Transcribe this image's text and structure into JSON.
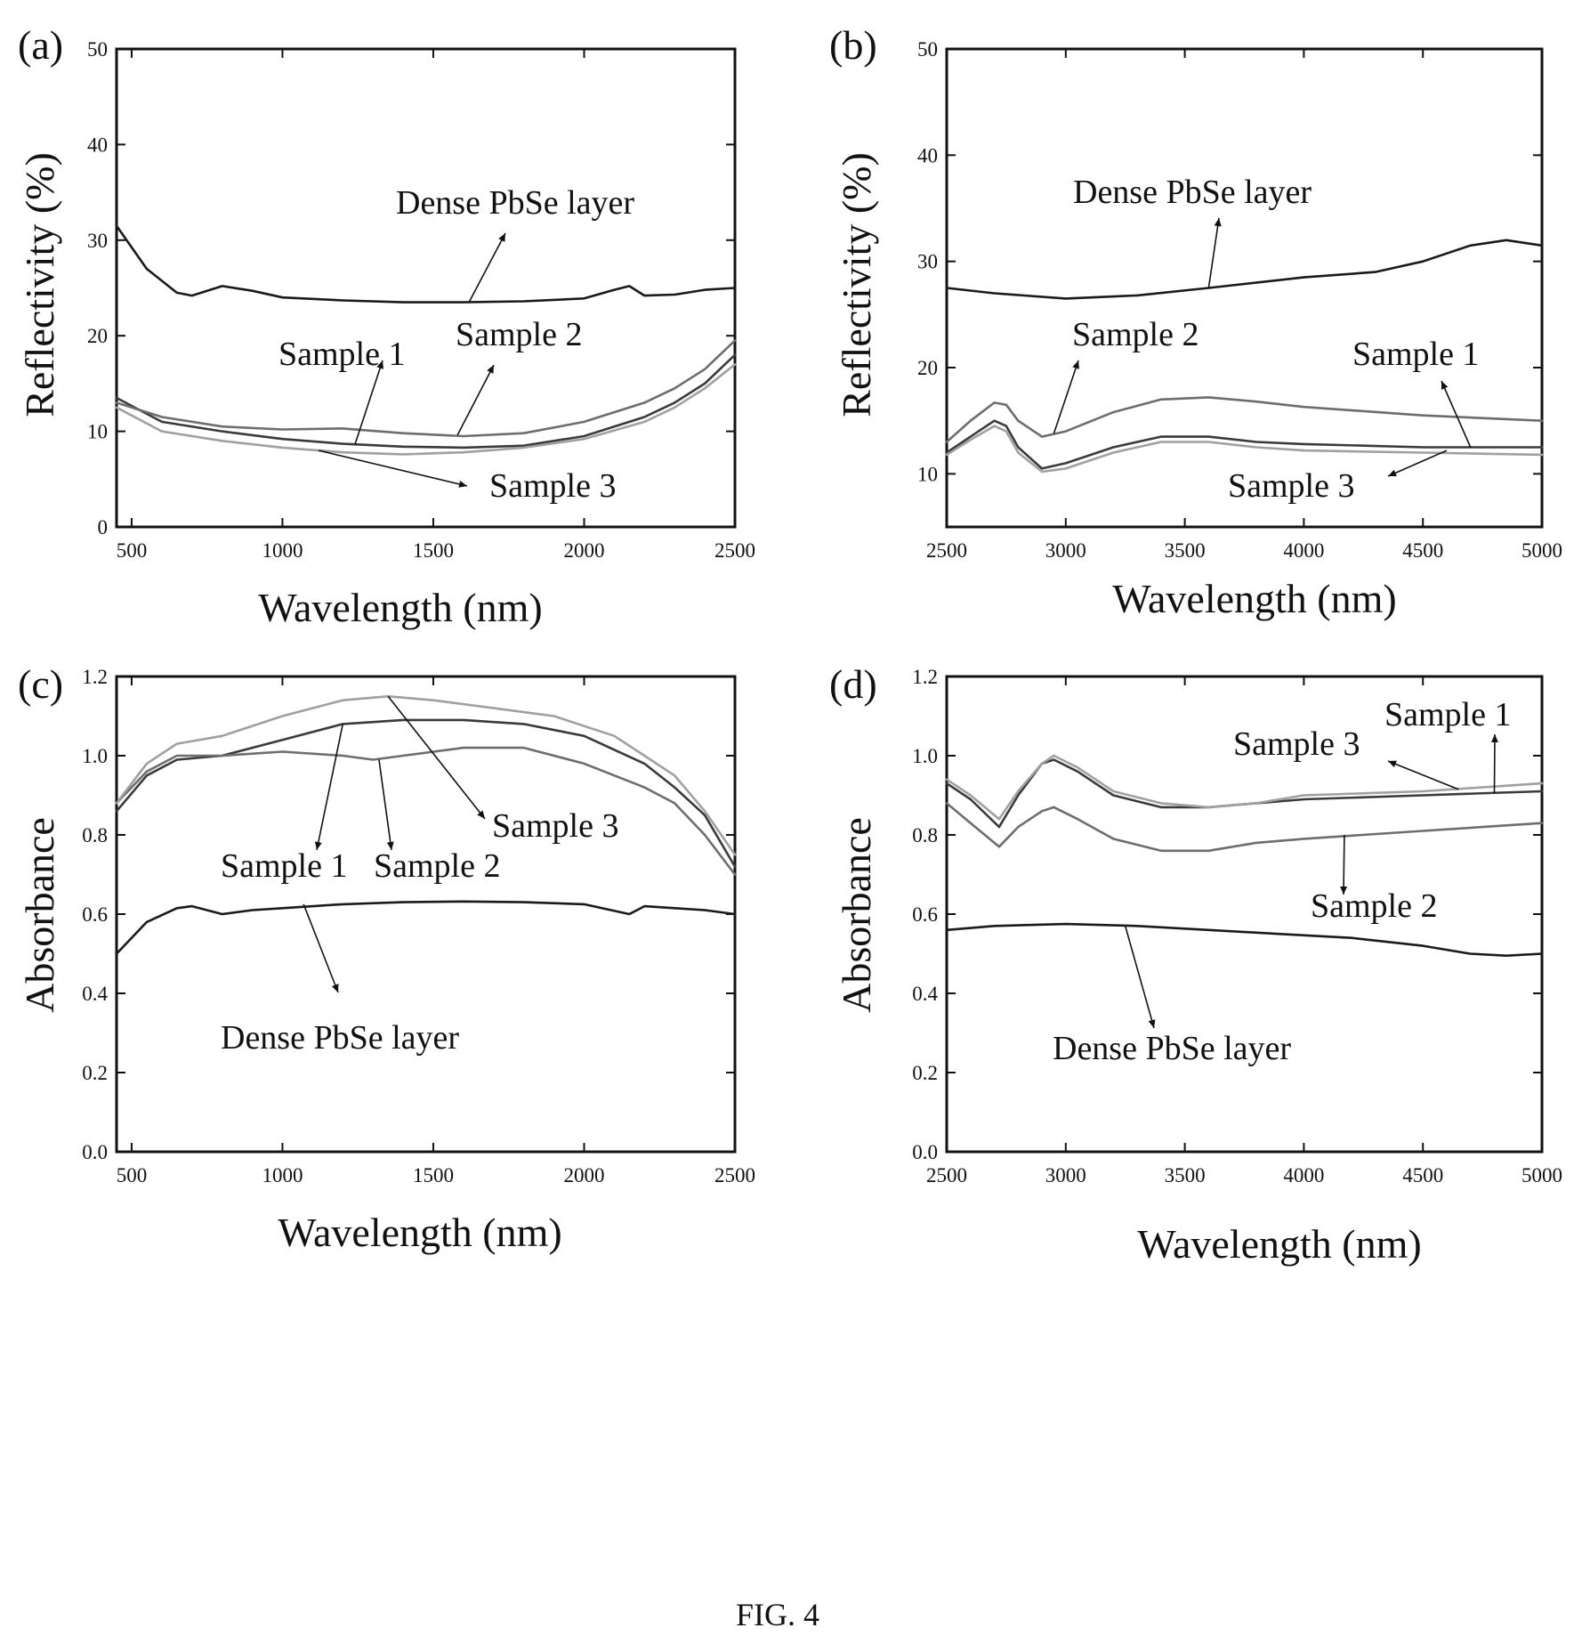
{
  "figure": {
    "caption": "FIG. 4"
  },
  "chart_data": [
    {
      "panel": "(a)",
      "type": "line",
      "xlabel": "Wavelength (nm)",
      "ylabel": "Reflectivity (%)",
      "xlim": [
        450,
        2500
      ],
      "ylim": [
        0,
        50
      ],
      "xticks": [
        500,
        1000,
        1500,
        2000,
        2500
      ],
      "yticks": [
        0,
        10,
        20,
        30,
        40,
        50
      ],
      "grid": false,
      "series": [
        {
          "name": "Dense PbSe layer",
          "color": "#1a1a1a",
          "x": [
            450,
            550,
            650,
            700,
            800,
            900,
            1000,
            1200,
            1400,
            1600,
            1800,
            2000,
            2100,
            2150,
            2200,
            2300,
            2400,
            2500
          ],
          "y": [
            31.5,
            27,
            24.5,
            24.2,
            25.2,
            24.7,
            24,
            23.7,
            23.5,
            23.5,
            23.6,
            23.9,
            24.8,
            25.2,
            24.2,
            24.3,
            24.8,
            25
          ]
        },
        {
          "name": "Sample 1",
          "color": "#3a3a3a",
          "x": [
            450,
            600,
            800,
            1000,
            1200,
            1400,
            1600,
            1800,
            2000,
            2200,
            2300,
            2400,
            2500
          ],
          "y": [
            13.5,
            11,
            10,
            9.2,
            8.7,
            8.4,
            8.3,
            8.5,
            9.5,
            11.5,
            13,
            15,
            18
          ]
        },
        {
          "name": "Sample 2",
          "color": "#6d6d6d",
          "x": [
            450,
            600,
            800,
            1000,
            1200,
            1400,
            1600,
            1800,
            2000,
            2200,
            2300,
            2400,
            2500
          ],
          "y": [
            13,
            11.5,
            10.5,
            10.2,
            10.3,
            9.8,
            9.5,
            9.8,
            11,
            13,
            14.5,
            16.5,
            19.5
          ]
        },
        {
          "name": "Sample 3",
          "color": "#a0a0a0",
          "x": [
            450,
            600,
            800,
            1000,
            1200,
            1400,
            1600,
            1800,
            2000,
            2200,
            2300,
            2400,
            2500
          ],
          "y": [
            12.5,
            10,
            9,
            8.3,
            7.8,
            7.6,
            7.8,
            8.3,
            9.2,
            11,
            12.5,
            14.5,
            17
          ]
        }
      ],
      "annotations": [
        "Dense PbSe layer",
        "Sample 1",
        "Sample 2",
        "Sample 3"
      ]
    },
    {
      "panel": "(b)",
      "type": "line",
      "xlabel": "Wavelength (nm)",
      "ylabel": "Reflectivity (%)",
      "xlim": [
        2500,
        5000
      ],
      "ylim": [
        5,
        50
      ],
      "xticks": [
        2500,
        3000,
        3500,
        4000,
        4500,
        5000
      ],
      "yticks": [
        10,
        20,
        30,
        40,
        50
      ],
      "grid": false,
      "series": [
        {
          "name": "Dense PbSe layer",
          "color": "#1a1a1a",
          "x": [
            2500,
            2700,
            3000,
            3300,
            3600,
            4000,
            4300,
            4500,
            4700,
            4850,
            5000
          ],
          "y": [
            27.5,
            27,
            26.5,
            26.8,
            27.5,
            28.5,
            29,
            30,
            31.5,
            32,
            31.5
          ]
        },
        {
          "name": "Sample 1",
          "color": "#3a3a3a",
          "x": [
            2500,
            2600,
            2700,
            2750,
            2800,
            2900,
            3000,
            3200,
            3400,
            3600,
            3800,
            4000,
            4500,
            5000
          ],
          "y": [
            12,
            13.5,
            15,
            14.5,
            12.5,
            10.5,
            11,
            12.5,
            13.5,
            13.5,
            13,
            12.8,
            12.5,
            12.5
          ]
        },
        {
          "name": "Sample 2",
          "color": "#6d6d6d",
          "x": [
            2500,
            2600,
            2700,
            2750,
            2800,
            2900,
            3000,
            3200,
            3400,
            3600,
            3800,
            4000,
            4500,
            5000
          ],
          "y": [
            13,
            15,
            16.7,
            16.5,
            15,
            13.5,
            14,
            15.8,
            17,
            17.2,
            16.8,
            16.3,
            15.5,
            15
          ]
        },
        {
          "name": "Sample 3",
          "color": "#a0a0a0",
          "x": [
            2500,
            2600,
            2700,
            2750,
            2800,
            2900,
            3000,
            3200,
            3400,
            3600,
            3800,
            4000,
            4500,
            5000
          ],
          "y": [
            11.8,
            13.2,
            14.5,
            14,
            12,
            10.2,
            10.5,
            12,
            13,
            13,
            12.5,
            12.2,
            12,
            11.8
          ]
        }
      ],
      "annotations": [
        "Dense PbSe layer",
        "Sample 2",
        "Sample 1",
        "Sample 3"
      ]
    },
    {
      "panel": "(c)",
      "type": "line",
      "xlabel": "Wavelength (nm)",
      "ylabel": "Absorbance",
      "xlim": [
        450,
        2500
      ],
      "ylim": [
        0.0,
        1.2
      ],
      "xticks": [
        500,
        1000,
        1500,
        2000,
        2500
      ],
      "yticks": [
        0.0,
        0.2,
        0.4,
        0.6,
        0.8,
        1.0,
        1.2
      ],
      "grid": false,
      "series": [
        {
          "name": "Dense PbSe layer",
          "color": "#1a1a1a",
          "x": [
            450,
            550,
            650,
            700,
            800,
            900,
            1000,
            1200,
            1400,
            1600,
            1800,
            2000,
            2150,
            2200,
            2300,
            2400,
            2500
          ],
          "y": [
            0.5,
            0.58,
            0.615,
            0.62,
            0.6,
            0.61,
            0.615,
            0.625,
            0.63,
            0.632,
            0.63,
            0.625,
            0.6,
            0.62,
            0.615,
            0.61,
            0.6
          ]
        },
        {
          "name": "Sample 1",
          "color": "#3a3a3a",
          "x": [
            450,
            550,
            650,
            800,
            1000,
            1200,
            1400,
            1600,
            1800,
            2000,
            2200,
            2300,
            2400,
            2500
          ],
          "y": [
            0.86,
            0.95,
            0.99,
            1.0,
            1.04,
            1.08,
            1.09,
            1.09,
            1.08,
            1.05,
            0.98,
            0.92,
            0.85,
            0.72
          ]
        },
        {
          "name": "Sample 2",
          "color": "#6d6d6d",
          "x": [
            450,
            550,
            650,
            800,
            1000,
            1200,
            1300,
            1400,
            1600,
            1800,
            2000,
            2200,
            2300,
            2400,
            2500
          ],
          "y": [
            0.88,
            0.96,
            1.0,
            1.0,
            1.01,
            1.0,
            0.99,
            1.0,
            1.02,
            1.02,
            0.98,
            0.92,
            0.88,
            0.8,
            0.7
          ]
        },
        {
          "name": "Sample 3",
          "color": "#a0a0a0",
          "x": [
            450,
            550,
            650,
            800,
            1000,
            1200,
            1350,
            1500,
            1700,
            1900,
            2100,
            2200,
            2300,
            2400,
            2500
          ],
          "y": [
            0.88,
            0.98,
            1.03,
            1.05,
            1.1,
            1.14,
            1.15,
            1.14,
            1.12,
            1.1,
            1.05,
            1.0,
            0.95,
            0.86,
            0.75
          ]
        }
      ],
      "annotations": [
        "Sample 3",
        "Sample 1",
        "Sample 2",
        "Dense PbSe layer"
      ]
    },
    {
      "panel": "(d)",
      "type": "line",
      "xlabel": "Wavelength (nm)",
      "ylabel": "Absorbance",
      "xlim": [
        2500,
        5000
      ],
      "ylim": [
        0.0,
        1.2
      ],
      "xticks": [
        2500,
        3000,
        3500,
        4000,
        4500,
        5000
      ],
      "yticks": [
        0.0,
        0.2,
        0.4,
        0.6,
        0.8,
        1.0,
        1.2
      ],
      "grid": false,
      "series": [
        {
          "name": "Dense PbSe layer",
          "color": "#1a1a1a",
          "x": [
            2500,
            2700,
            3000,
            3300,
            3600,
            3900,
            4200,
            4500,
            4700,
            4850,
            5000
          ],
          "y": [
            0.56,
            0.57,
            0.575,
            0.57,
            0.56,
            0.55,
            0.54,
            0.52,
            0.5,
            0.495,
            0.5
          ]
        },
        {
          "name": "Sample 1",
          "color": "#3a3a3a",
          "x": [
            2500,
            2600,
            2720,
            2800,
            2900,
            2950,
            3050,
            3200,
            3400,
            3600,
            3800,
            4000,
            4500,
            5000
          ],
          "y": [
            0.93,
            0.89,
            0.82,
            0.9,
            0.98,
            0.99,
            0.96,
            0.9,
            0.87,
            0.87,
            0.88,
            0.89,
            0.9,
            0.91
          ]
        },
        {
          "name": "Sample 2",
          "color": "#6d6d6d",
          "x": [
            2500,
            2600,
            2720,
            2800,
            2900,
            2950,
            3050,
            3200,
            3400,
            3600,
            3800,
            4000,
            4500,
            5000
          ],
          "y": [
            0.88,
            0.83,
            0.77,
            0.82,
            0.86,
            0.87,
            0.84,
            0.79,
            0.76,
            0.76,
            0.78,
            0.79,
            0.81,
            0.83
          ]
        },
        {
          "name": "Sample 3",
          "color": "#a0a0a0",
          "x": [
            2500,
            2600,
            2720,
            2800,
            2900,
            2950,
            3050,
            3200,
            3400,
            3600,
            3800,
            4000,
            4500,
            5000
          ],
          "y": [
            0.94,
            0.9,
            0.84,
            0.91,
            0.98,
            1.0,
            0.97,
            0.91,
            0.88,
            0.87,
            0.88,
            0.9,
            0.91,
            0.93
          ]
        }
      ],
      "annotations": [
        "Sample 1",
        "Sample 3",
        "Sample 2",
        "Dense PbSe layer"
      ]
    }
  ]
}
